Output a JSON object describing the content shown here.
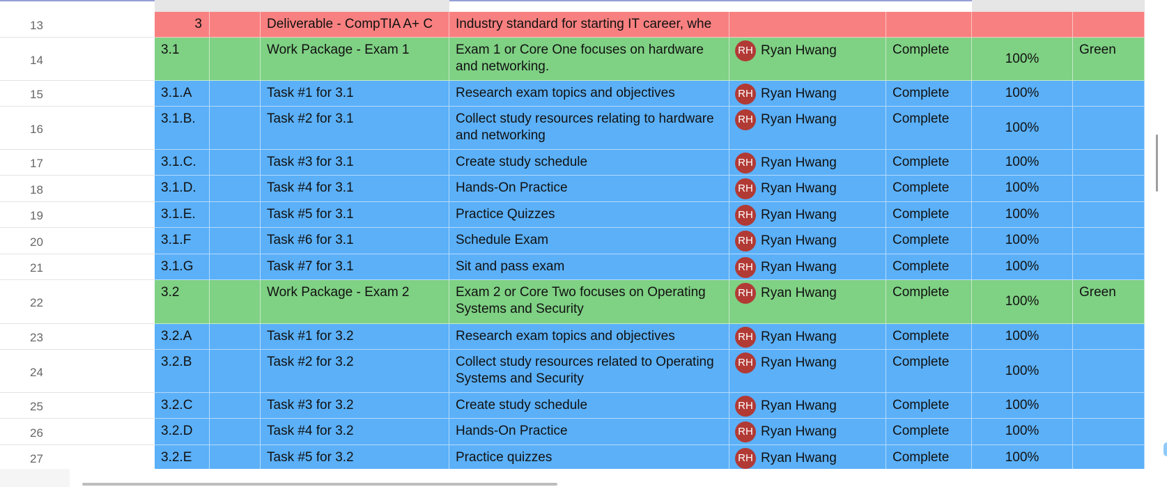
{
  "rows": [
    {
      "num": "13",
      "color": "red",
      "id": "3",
      "name": "Deliverable - CompTIA A+ C",
      "desc": "Industry standard for starting IT career, whe",
      "assignee": "",
      "status": "",
      "pct": "",
      "health": ""
    },
    {
      "num": "14",
      "color": "green",
      "id": "3.1",
      "name": "Work Package - Exam 1",
      "desc": "Exam 1 or Core One focuses on hardware and networking.",
      "assignee": "Ryan Hwang",
      "status": "Complete",
      "pct": "100%",
      "health": "Green"
    },
    {
      "num": "15",
      "color": "blue",
      "id": "3.1.A",
      "name": "Task #1 for 3.1",
      "desc": "Research exam topics and objectives",
      "assignee": "Ryan Hwang",
      "status": "Complete",
      "pct": "100%",
      "health": ""
    },
    {
      "num": "16",
      "color": "blue",
      "id": "3.1.B.",
      "name": "Task #2 for 3.1",
      "desc": "Collect study resources relating to hardware and networking",
      "assignee": "Ryan Hwang",
      "status": "Complete",
      "pct": "100%",
      "health": ""
    },
    {
      "num": "17",
      "color": "blue",
      "id": "3.1.C.",
      "name": "Task #3 for 3.1",
      "desc": "Create study schedule",
      "assignee": "Ryan Hwang",
      "status": "Complete",
      "pct": "100%",
      "health": ""
    },
    {
      "num": "18",
      "color": "blue",
      "id": "3.1.D.",
      "name": "Task #4 for 3.1",
      "desc": "Hands-On Practice",
      "assignee": "Ryan Hwang",
      "status": "Complete",
      "pct": "100%",
      "health": ""
    },
    {
      "num": "19",
      "color": "blue",
      "id": "3.1.E.",
      "name": "Task #5 for 3.1",
      "desc": "Practice Quizzes",
      "assignee": "Ryan Hwang",
      "status": "Complete",
      "pct": "100%",
      "health": ""
    },
    {
      "num": "20",
      "color": "blue",
      "id": "3.1.F",
      "name": "Task #6 for 3.1",
      "desc": "Schedule Exam",
      "assignee": "Ryan Hwang",
      "status": "Complete",
      "pct": "100%",
      "health": ""
    },
    {
      "num": "21",
      "color": "blue",
      "id": "3.1.G",
      "name": "Task #7 for 3.1",
      "desc": "Sit and pass exam",
      "assignee": "Ryan Hwang",
      "status": "Complete",
      "pct": "100%",
      "health": ""
    },
    {
      "num": "22",
      "color": "green",
      "id": "3.2",
      "name": "Work Package - Exam 2",
      "desc": "Exam 2 or Core Two focuses on Operating Systems and Security",
      "assignee": "Ryan Hwang",
      "status": "Complete",
      "pct": "100%",
      "health": "Green"
    },
    {
      "num": "23",
      "color": "blue",
      "id": "3.2.A",
      "name": "Task #1 for 3.2",
      "desc": "Research exam topics and objectives",
      "assignee": "Ryan Hwang",
      "status": "Complete",
      "pct": "100%",
      "health": ""
    },
    {
      "num": "24",
      "color": "blue",
      "id": "3.2.B",
      "name": "Task #2 for 3.2",
      "desc": "Collect study resources related to Operating Systems and Security",
      "assignee": "Ryan Hwang",
      "status": "Complete",
      "pct": "100%",
      "health": ""
    },
    {
      "num": "25",
      "color": "blue",
      "id": "3.2.C",
      "name": "Task #3 for 3.2",
      "desc": "Create study schedule",
      "assignee": "Ryan Hwang",
      "status": "Complete",
      "pct": "100%",
      "health": ""
    },
    {
      "num": "26",
      "color": "blue",
      "id": "3.2.D",
      "name": "Task #4 for 3.2",
      "desc": "Hands-On Practice",
      "assignee": "Ryan Hwang",
      "status": "Complete",
      "pct": "100%",
      "health": ""
    },
    {
      "num": "27",
      "color": "blue",
      "id": "3.2.E",
      "name": "Task #5 for 3.2",
      "desc": "Practice quizzes",
      "assignee": "Ryan Hwang",
      "status": "Complete",
      "pct": "100%",
      "health": ""
    }
  ],
  "avatar": {
    "initials": "RH",
    "color": "#b23a35"
  },
  "colors": {
    "red": "#f98080",
    "green": "#7fd184",
    "blue": "#5bb0f8"
  }
}
